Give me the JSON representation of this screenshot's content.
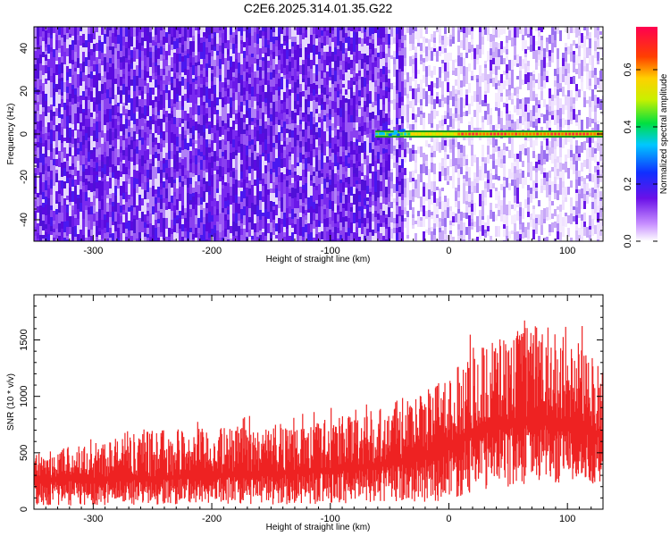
{
  "title": "C2E6.2025.314.01.35.G22",
  "colors": {
    "snr_line": "#ee2222",
    "spectrogram_fill": "#6a10e8",
    "carrier_line": "#1a9a20"
  },
  "chart_data": [
    {
      "type": "heatmap",
      "xlabel": "Height of straight line (km)",
      "ylabel": "Frequency (Hz)",
      "xlim": [
        -350,
        130
      ],
      "ylim": [
        -50,
        50
      ],
      "x_ticks": [
        -300,
        -200,
        -100,
        0,
        100
      ],
      "x_tick_labels": [
        "-300",
        "-200",
        "-100",
        "0",
        "100"
      ],
      "y_ticks": [
        -40,
        -20,
        0,
        20,
        40
      ],
      "y_tick_labels": [
        "-40",
        "-20",
        "0",
        "20",
        "40"
      ],
      "colorbar": {
        "label": "Normalized spectral amplitude",
        "range": [
          0,
          0.75
        ],
        "ticks": [
          0.0,
          0.2,
          0.4,
          0.6
        ],
        "tick_labels": [
          "0.0",
          "0.2",
          "0.4",
          "0.6"
        ],
        "colormap": "rainbow (white-purple-blue-cyan-green-yellow-red)"
      },
      "features": {
        "noise_level_left": 0.08,
        "noise_level_right": 0.03,
        "noise_transition_x": -45,
        "carrier_frequency_hz": 0,
        "carrier_start_x": -62,
        "carrier_amplitude_max": 0.7
      }
    },
    {
      "type": "line",
      "xlabel": "Height of straight line (km)",
      "ylabel": "SNR (10 * v/v)",
      "xlim": [
        -350,
        130
      ],
      "ylim": [
        0,
        1900
      ],
      "x_ticks": [
        -300,
        -200,
        -100,
        0,
        100
      ],
      "x_tick_labels": [
        "-300",
        "-200",
        "-100",
        "0",
        "100"
      ],
      "y_ticks": [
        0,
        500,
        1000,
        1500
      ],
      "y_tick_labels": [
        "0",
        "500",
        "1000",
        "1500"
      ],
      "series": [
        {
          "color": "#ee2222",
          "envelope_x": [
            -350,
            -300,
            -250,
            -200,
            -150,
            -100,
            -50,
            -20,
            0,
            20,
            50,
            80,
            100,
            130
          ],
          "lower": [
            30,
            30,
            40,
            50,
            40,
            50,
            60,
            60,
            80,
            150,
            200,
            250,
            220,
            200
          ],
          "mean": [
            270,
            280,
            290,
            310,
            330,
            360,
            420,
            480,
            580,
            700,
            780,
            820,
            760,
            680
          ],
          "upper": [
            500,
            600,
            700,
            720,
            750,
            800,
            950,
            1050,
            1200,
            1400,
            1600,
            1650,
            1500,
            1300
          ]
        }
      ]
    }
  ]
}
